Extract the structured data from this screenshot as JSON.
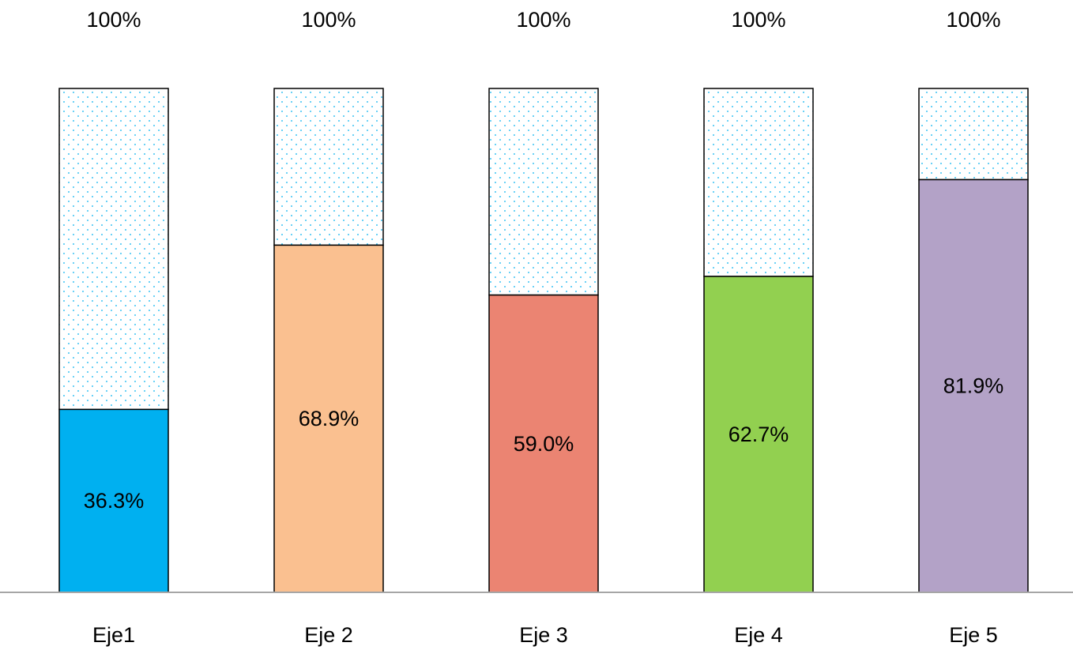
{
  "chart_data": {
    "type": "bar",
    "categories": [
      "Eje1",
      "Eje 2",
      "Eje 3",
      "Eje 4",
      "Eje 5"
    ],
    "values": [
      36.3,
      68.9,
      59.0,
      62.7,
      81.9
    ],
    "value_labels": [
      "36.3%",
      "68.9%",
      "59.0%",
      "62.7%",
      "81.9%"
    ],
    "total_value": 100,
    "total_labels": [
      "100%",
      "100%",
      "100%",
      "100%",
      "100%"
    ],
    "colors": [
      "#00b0f0",
      "#fac090",
      "#eb8472",
      "#92d050",
      "#b3a2c7"
    ],
    "remainder_pattern": "dotted",
    "remainder_dot_color": "#00b0f0",
    "ylim": [
      0,
      100
    ],
    "grid": false,
    "legend": "none"
  }
}
